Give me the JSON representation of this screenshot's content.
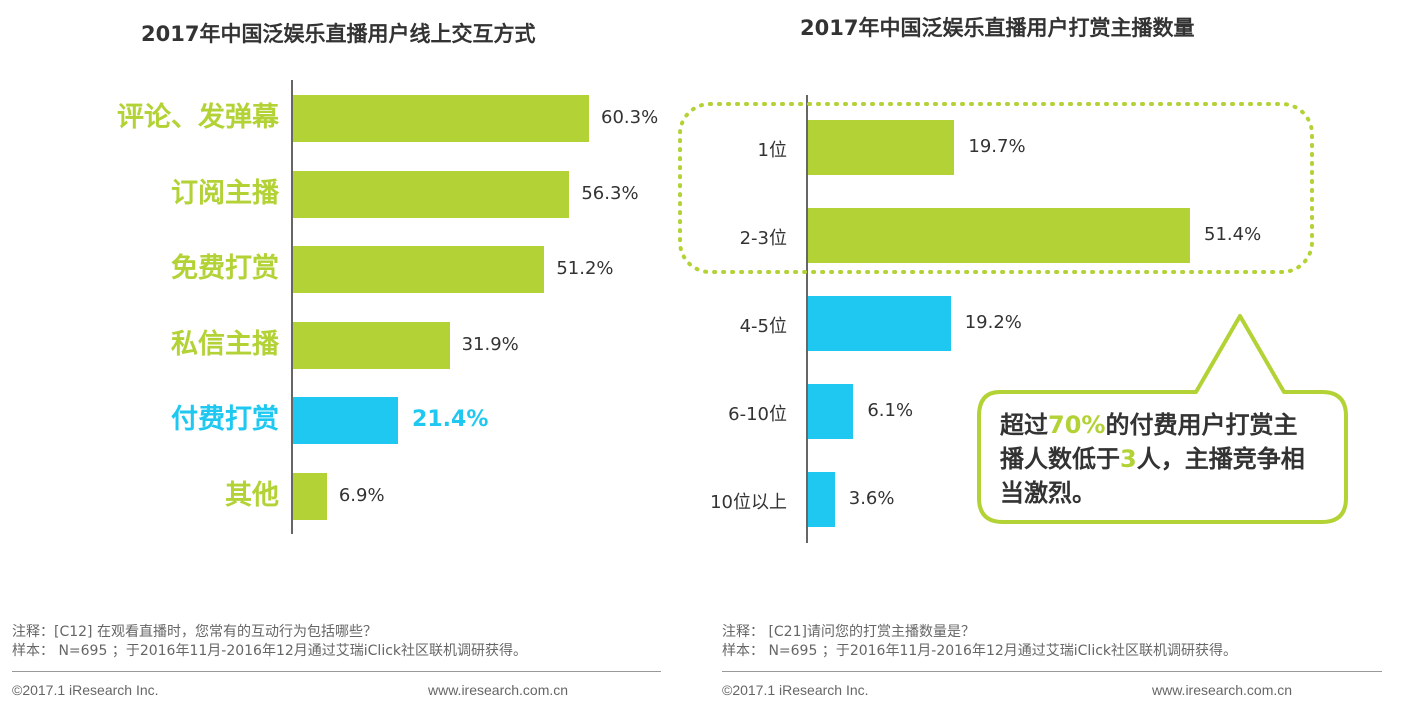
{
  "colors": {
    "green": "#b2d235",
    "blue": "#1ec8f0",
    "text": "#333333",
    "muted": "#666666"
  },
  "left_chart": {
    "title": "2017年中国泛娱乐直播用户线上交互方式",
    "note_line1": "注释：[C12] 在观看直播时，您常有的互动行为包括哪些？",
    "note_line2": "样本： N=695 ；于2016年11月-2016年12月通过艾瑞iClick社区联机调研获得。",
    "copyright": "©2017.1 iResearch Inc.",
    "website": "www.iresearch.com.cn"
  },
  "right_chart": {
    "title": "2017年中国泛娱乐直播用户打赏主播数量",
    "note_line1": "注释： [C21]请问您的打赏主播数量是？",
    "note_line2": "样本： N=695 ；于2016年11月-2016年12月通过艾瑞iClick社区联机调研获得。",
    "copyright": "©2017.1 iResearch Inc.",
    "website": "www.iresearch.com.cn",
    "callout": {
      "part1": "超过",
      "highlight1": "70%",
      "part2": "的付费用户打赏主播人数低于",
      "highlight2": "3",
      "part3": "人，主播竞争相当激烈。"
    }
  },
  "chart_data": [
    {
      "type": "bar",
      "orientation": "horizontal",
      "title": "2017年中国泛娱乐直播用户线上交互方式",
      "categories": [
        "评论、发弹幕",
        "订阅主播",
        "免费打赏",
        "私信主播",
        "付费打赏",
        "其他"
      ],
      "values": [
        60.3,
        56.3,
        51.2,
        31.9,
        21.4,
        6.9
      ],
      "labels": [
        "60.3%",
        "56.3%",
        "51.2%",
        "31.9%",
        "21.4%",
        "6.9%"
      ],
      "highlight_index": 4,
      "unit": "%"
    },
    {
      "type": "bar",
      "orientation": "horizontal",
      "title": "2017年中国泛娱乐直播用户打赏主播数量",
      "categories": [
        "1位",
        "2-3位",
        "4-5位",
        "6-10位",
        "10位以上"
      ],
      "values": [
        19.7,
        51.4,
        19.2,
        6.1,
        3.6
      ],
      "labels": [
        "19.7%",
        "51.4%",
        "19.2%",
        "6.1%",
        "3.6%"
      ],
      "highlight_indices": [
        0,
        1
      ],
      "unit": "%"
    }
  ]
}
